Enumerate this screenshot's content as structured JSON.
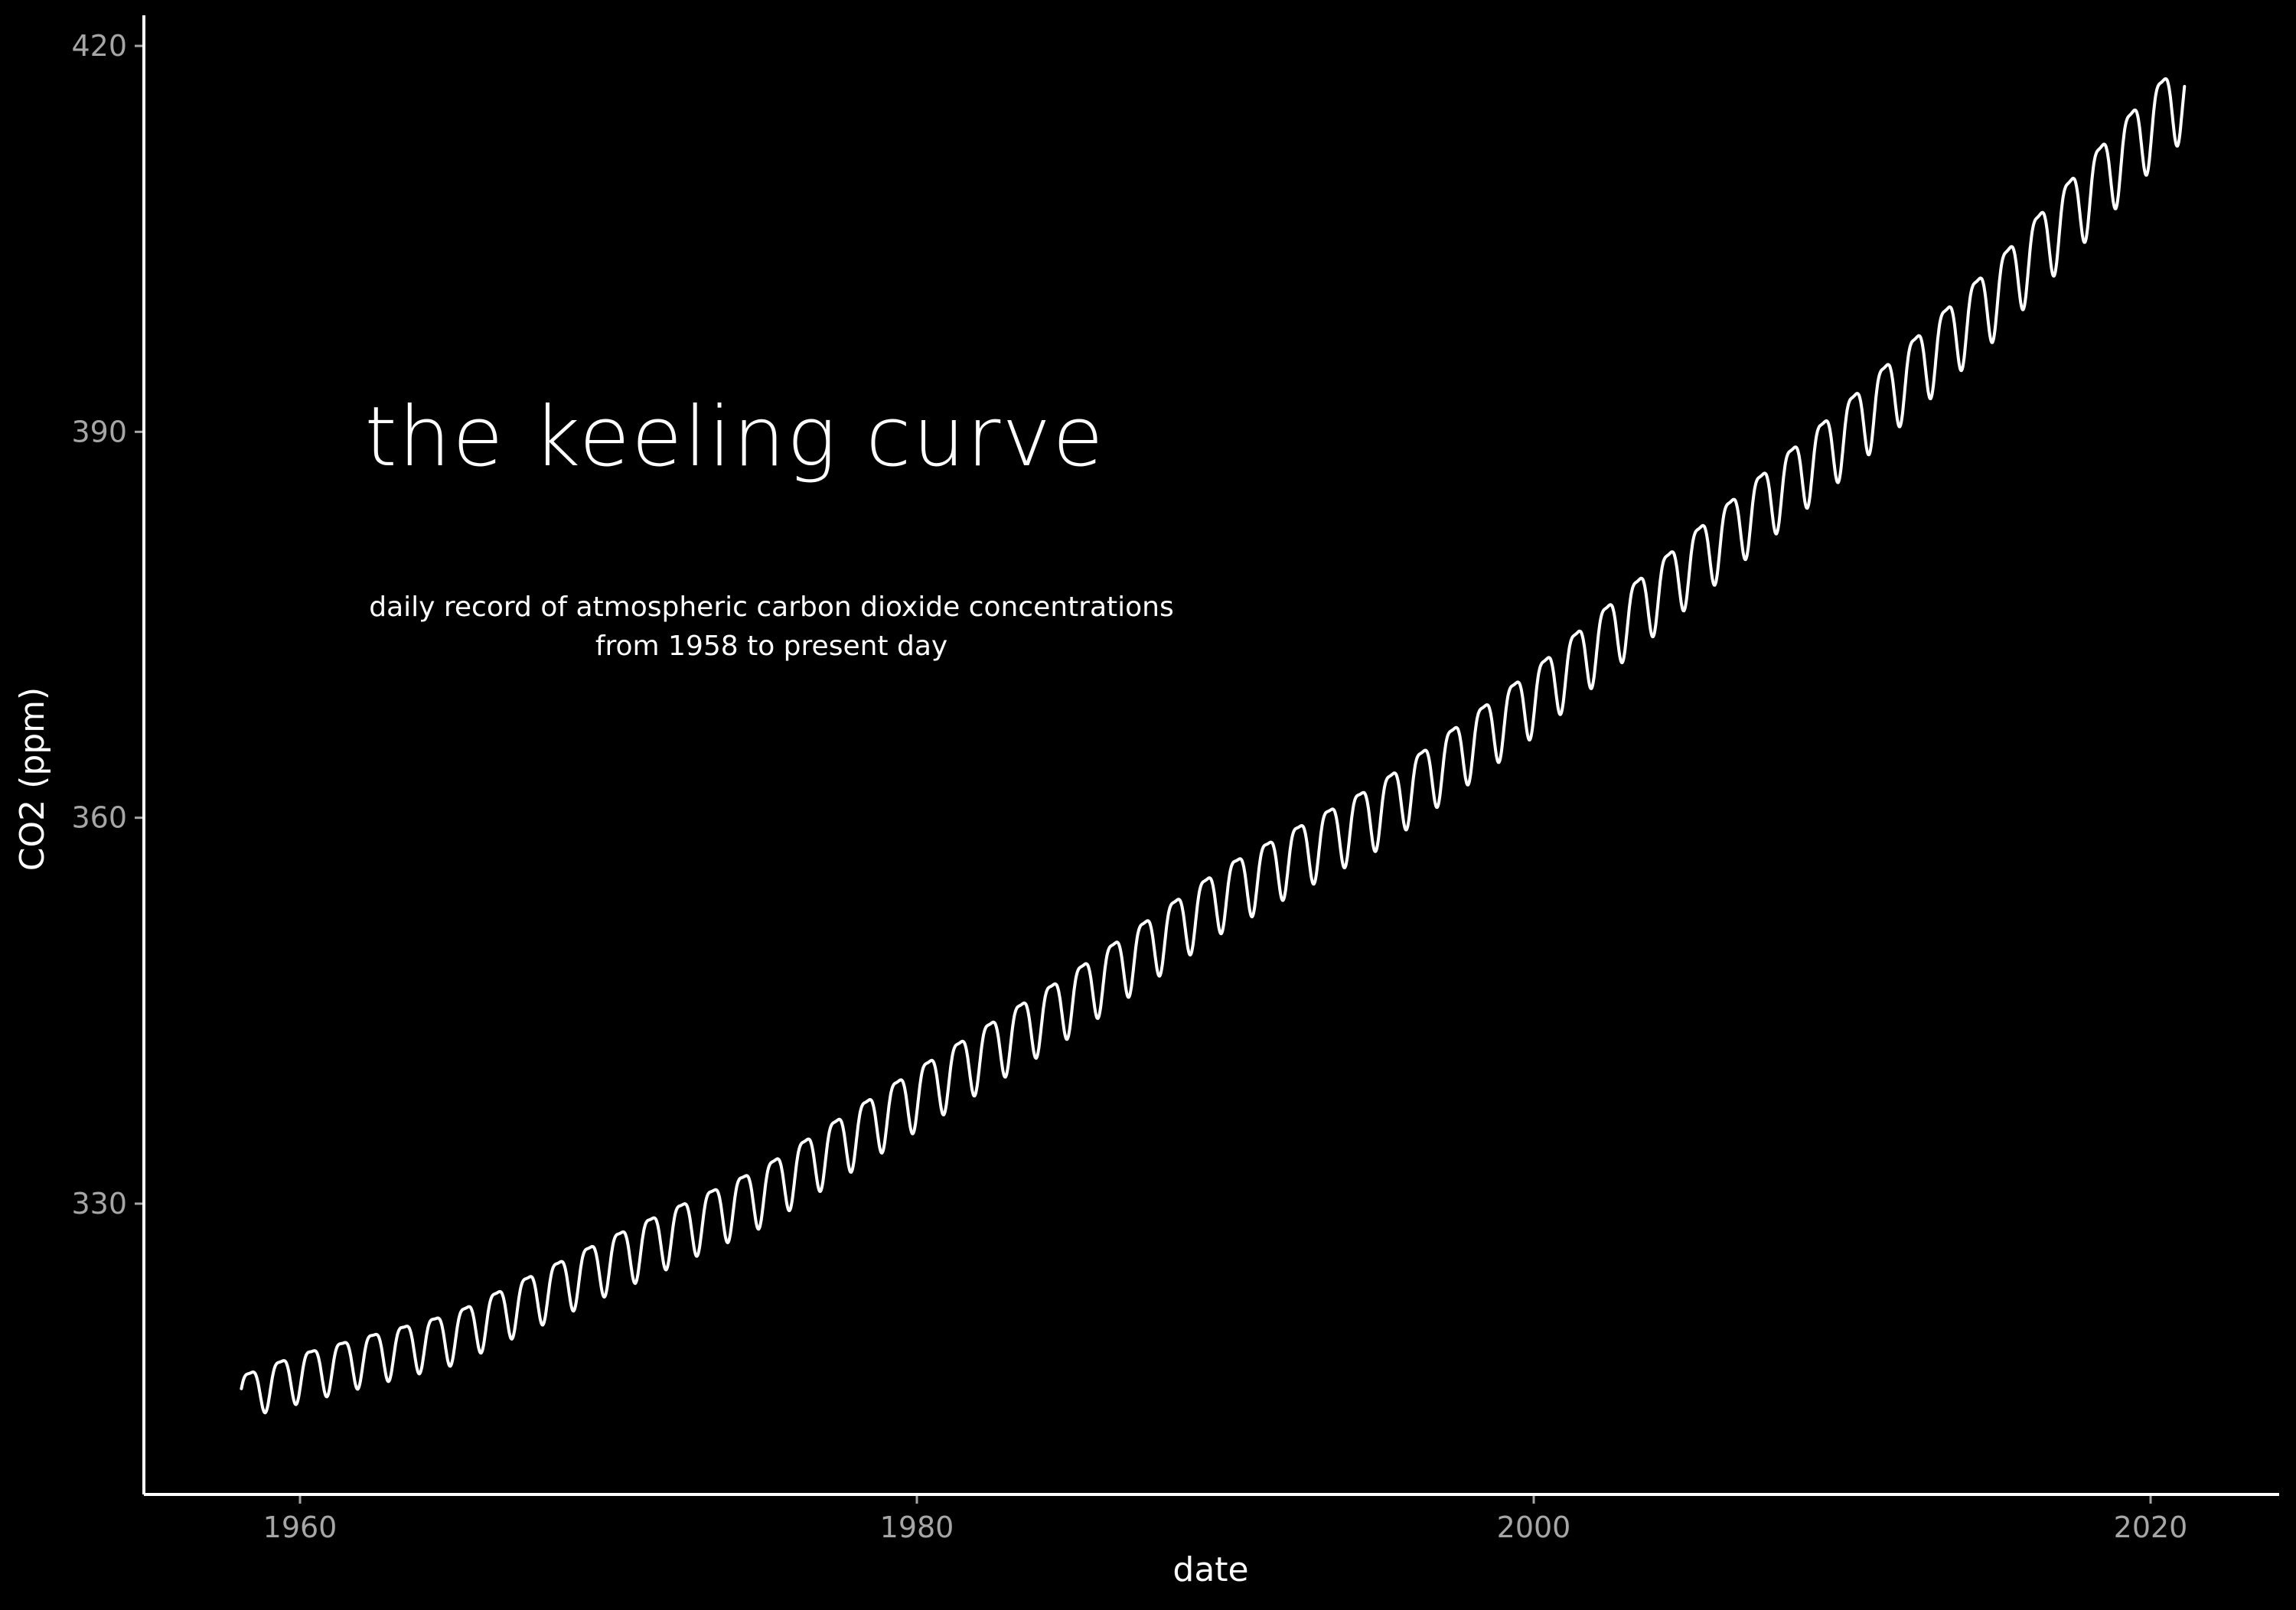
{
  "chart_data": {
    "type": "line",
    "title": "the keeling curve",
    "subtitle_lines": [
      "daily record of atmospheric carbon dioxide concentrations",
      "from 1958 to present day"
    ],
    "xlabel": "date",
    "ylabel": "CO2 (ppm)",
    "x_ticks": [
      1960,
      1980,
      2000,
      2020
    ],
    "y_ticks": [
      330,
      360,
      390,
      420
    ],
    "xlim": [
      1955,
      2024
    ],
    "ylim": [
      308,
      422
    ],
    "grid": false,
    "legend": "none",
    "series": [
      {
        "x": [
          1958,
          1960,
          1965,
          1970,
          1975,
          1980,
          1985,
          1990,
          1995,
          2000,
          2005,
          2010,
          2015,
          2020,
          2021
        ],
        "values": [
          315.3,
          316.9,
          320.0,
          325.7,
          331.1,
          338.7,
          346.1,
          354.4,
          360.8,
          369.6,
          379.8,
          389.9,
          401.0,
          414.2,
          416.4
        ],
        "seasonal_amplitude_ppm": [
          3.3,
          3.8,
          4.0,
          4.4,
          4.6,
          4.8,
          4.9,
          5.0,
          5.1,
          5.2,
          5.4,
          5.6,
          5.9,
          6.1,
          6.1
        ]
      }
    ],
    "colors": {
      "background": "#000000",
      "line": "#ffffff",
      "axis": "#ffffff",
      "tick_labels": "#a6a6a6",
      "text": "#ffffff"
    }
  }
}
